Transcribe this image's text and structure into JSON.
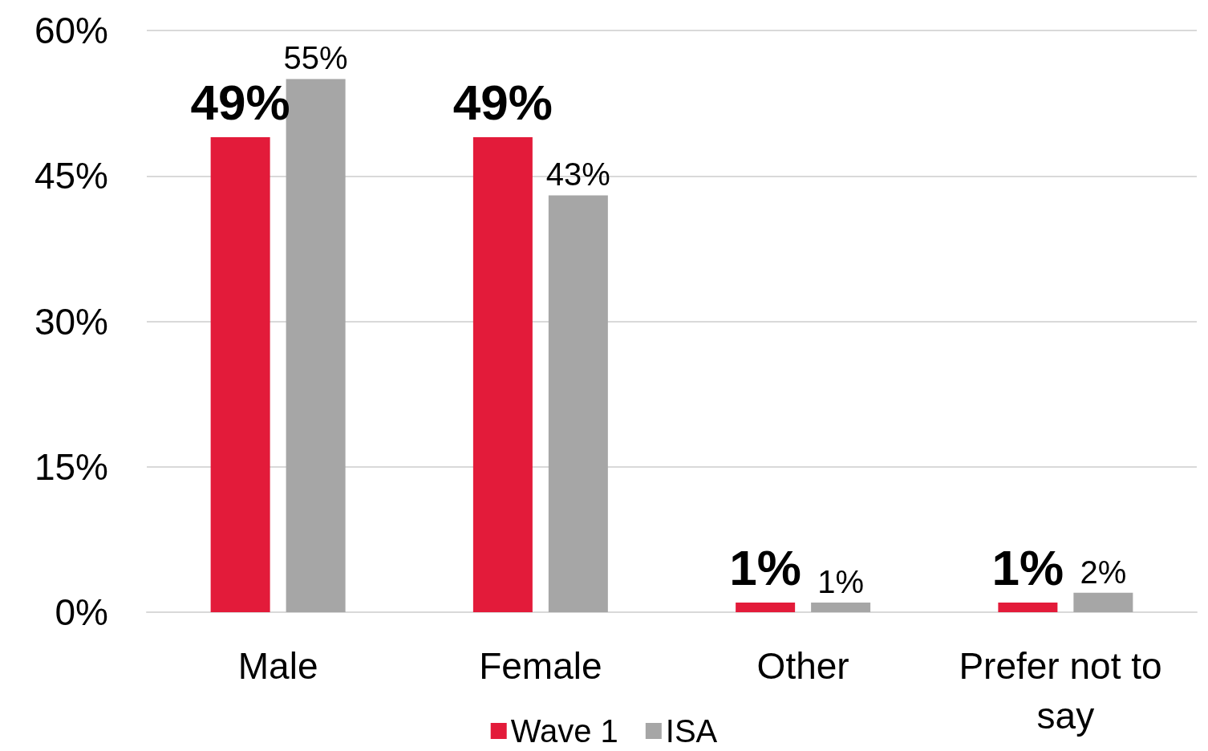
{
  "chart_data": {
    "type": "bar",
    "categories": [
      "Male",
      "Female",
      "Other",
      "Prefer not to say"
    ],
    "series": [
      {
        "name": "Wave 1",
        "color": "#e31b3a",
        "values": [
          49,
          49,
          1,
          1
        ],
        "value_labels": [
          "49%",
          "49%",
          "1%",
          "1%"
        ]
      },
      {
        "name": "ISA",
        "color": "#a6a6a6",
        "values": [
          55,
          43,
          1,
          2
        ],
        "value_labels": [
          "55%",
          "43%",
          "1%",
          "2%"
        ]
      }
    ],
    "ylim": [
      0,
      60
    ],
    "yticks": [
      {
        "value": 0,
        "label": "0%"
      },
      {
        "value": 15,
        "label": "15%"
      },
      {
        "value": 30,
        "label": "30%"
      },
      {
        "value": 45,
        "label": "45%"
      },
      {
        "value": 60,
        "label": "60%"
      }
    ],
    "grid": "y",
    "legend": "bottom"
  }
}
